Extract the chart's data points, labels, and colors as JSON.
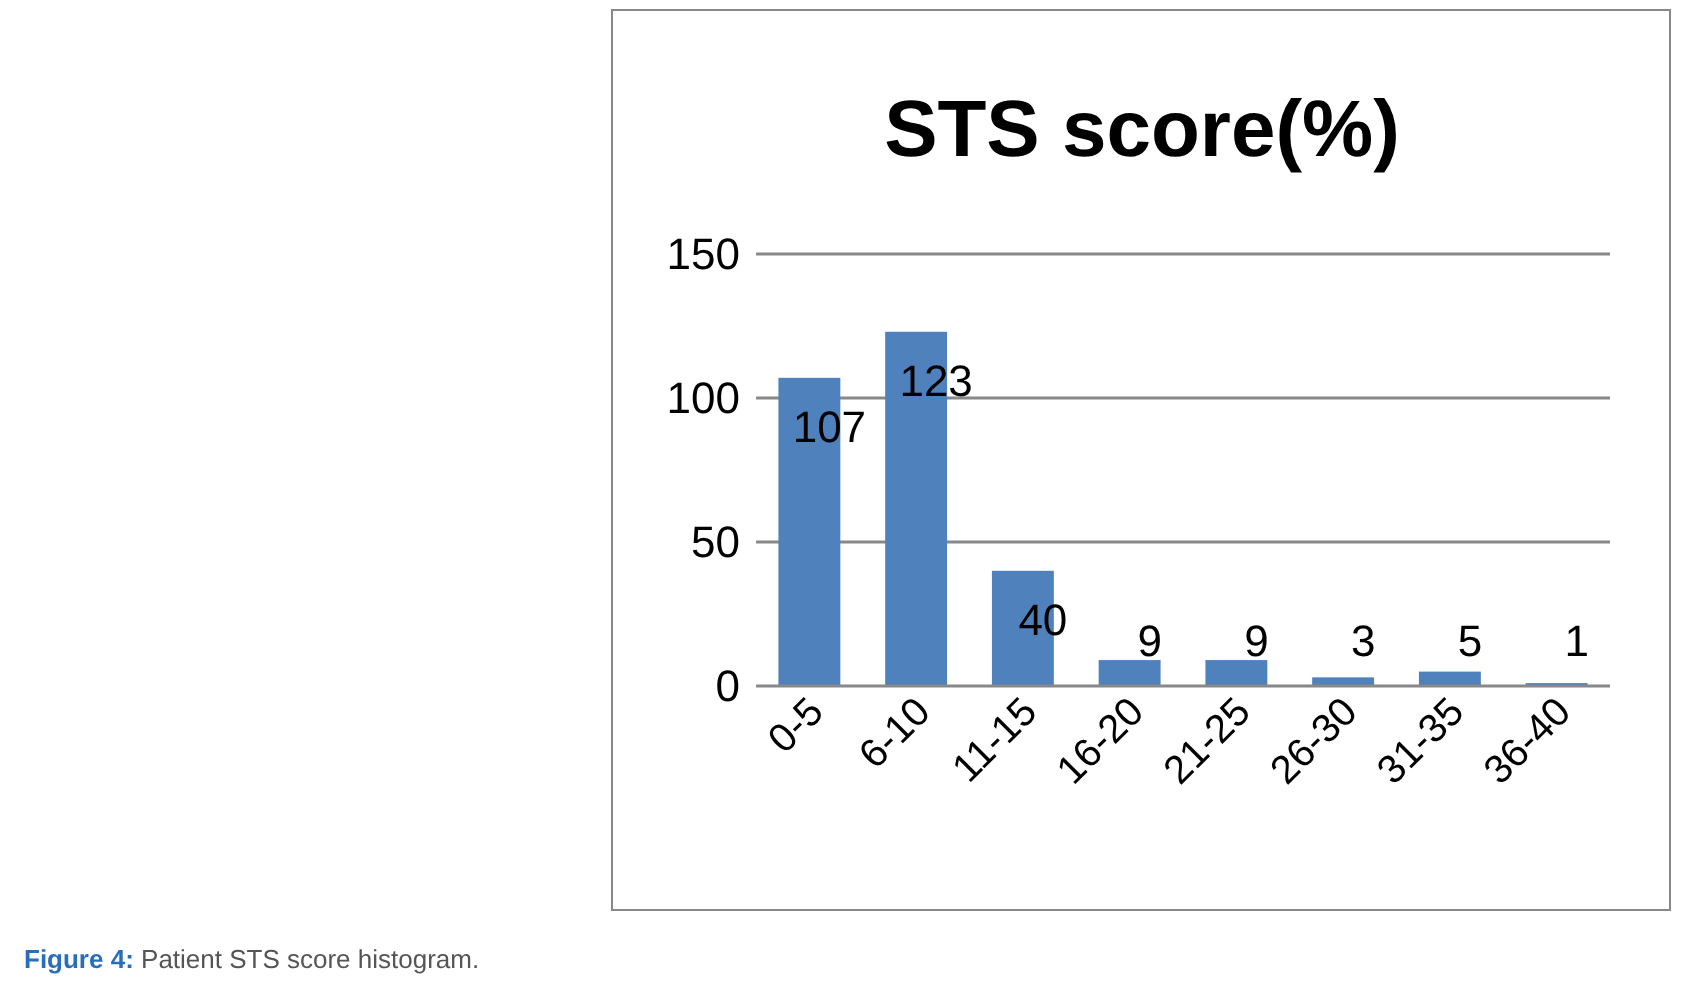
{
  "chart_data": {
    "type": "bar",
    "title": "STS score(%)",
    "categories": [
      "0-5",
      "6-10",
      "11-15",
      "16-20",
      "21-25",
      "26-30",
      "31-35",
      "36-40"
    ],
    "values": [
      107,
      123,
      40,
      9,
      9,
      3,
      5,
      1
    ],
    "color": "#4f81bd",
    "ylim": [
      0,
      150
    ],
    "yticks": [
      0,
      50,
      100,
      150
    ],
    "grid": "y",
    "data_labels": true,
    "annotations": [
      "Figure 4: Patient STS score histogram."
    ]
  }
}
